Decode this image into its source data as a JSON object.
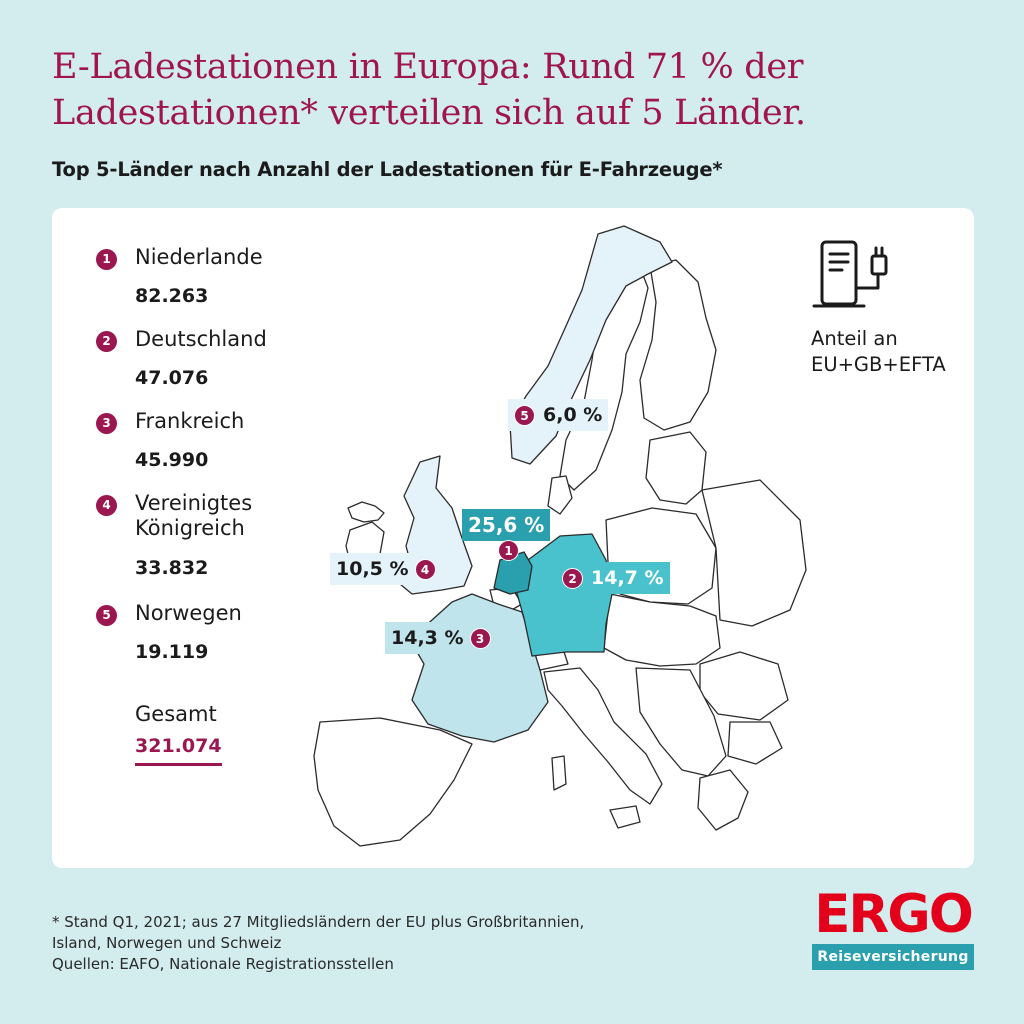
{
  "title": "E-Ladestationen in Europa: Rund 71 % der Ladestationen* verteilen sich auf 5 Länder.",
  "subtitle": "Top 5-Länder nach Anzahl der Ladestationen für E-Fahrzeuge*",
  "ranking": [
    {
      "rank": "1",
      "country": "Niederlande",
      "value": "82.263",
      "share": "25,6 %"
    },
    {
      "rank": "2",
      "country": "Deutschland",
      "value": "47.076",
      "share": "14,7 %"
    },
    {
      "rank": "3",
      "country": "Frankreich",
      "value": "45.990",
      "share": "14,3 %"
    },
    {
      "rank": "4",
      "country": "Vereinigtes Königreich",
      "value": "33.832",
      "share": "10,5 %"
    },
    {
      "rank": "5",
      "country": "Norwegen",
      "value": "19.119",
      "share": "6,0 %"
    }
  ],
  "total": {
    "label": "Gesamt",
    "value": "321.074"
  },
  "legend": {
    "icon": "charging-station-icon",
    "text": "Anteil an EU+GB+EFTA"
  },
  "footnote": {
    "line1": "* Stand Q1, 2021; aus 27 Mitgliedsländern der EU plus Großbritannien,",
    "line2": "Island, Norwegen und Schweiz",
    "line3": "Quellen: EAFO, Nationale Registrationsstellen"
  },
  "logo": {
    "name": "ERGO",
    "tagline": "Reiseversicherung"
  },
  "colors": {
    "background": "#d3ecee",
    "accent": "#9a1750",
    "netherlands": "#2a9fad",
    "germany": "#49c2ce",
    "france_uk": "#bfe4ec",
    "norway": "#e4f2f9",
    "brand_red": "#e3001b"
  }
}
